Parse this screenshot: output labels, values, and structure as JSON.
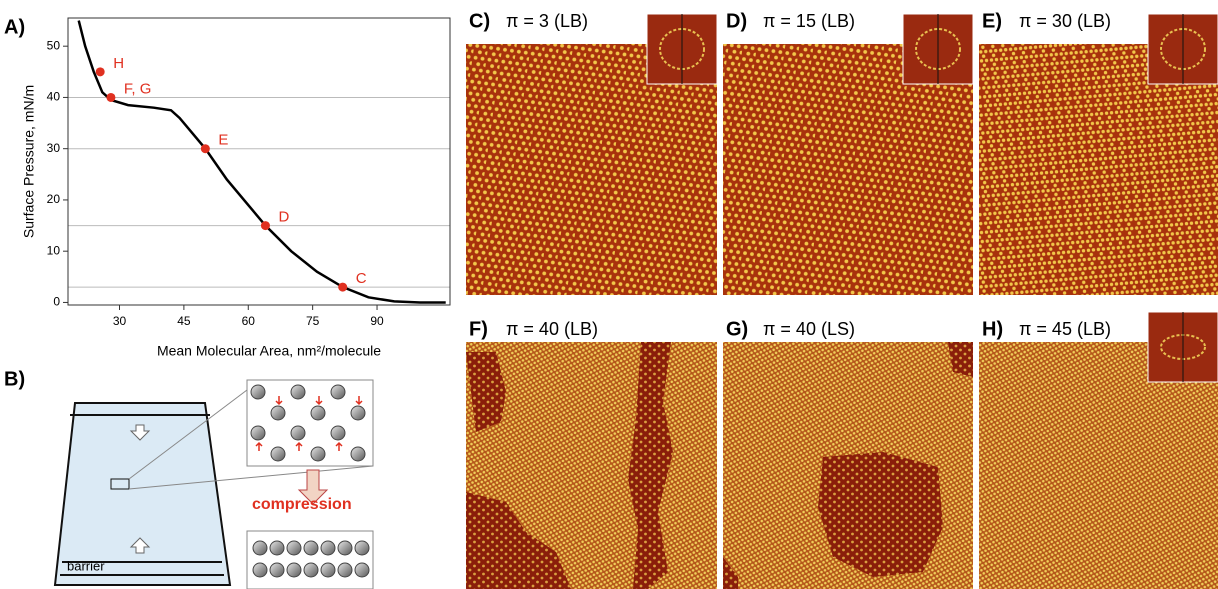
{
  "panel_labels": {
    "a": "A)",
    "b": "B)"
  },
  "chart_data": {
    "type": "line",
    "y_label": "Surface Pressure,  mN/m",
    "x_label": "Mean Molecular Area,  nm²/molecule",
    "x": [
      20.5,
      22,
      24,
      26,
      28,
      32,
      38,
      42,
      44,
      47,
      50,
      55,
      60,
      64,
      70,
      76,
      82,
      88,
      94,
      100,
      106
    ],
    "values": [
      55,
      50,
      45,
      41,
      39.5,
      38.5,
      38,
      37.5,
      36,
      33,
      30,
      24,
      19,
      15,
      10,
      6,
      3,
      1,
      0.2,
      0,
      0
    ],
    "color": "#000000",
    "points": {
      "x": [
        25.5,
        28,
        50,
        64,
        82
      ],
      "values": [
        45,
        40,
        30,
        15,
        3
      ],
      "labels": [
        "H",
        "F, G",
        "E",
        "D",
        "C"
      ],
      "color": "#e03020"
    },
    "reference_lines": [
      3,
      15,
      30,
      40
    ],
    "xlim": [
      18,
      107
    ],
    "ylim": [
      -0.5,
      55.5
    ],
    "xticks": [
      30,
      45,
      60,
      75,
      90
    ],
    "yticks": [
      0,
      10,
      20,
      30,
      40,
      50
    ]
  },
  "diagram": {
    "barrier": "barrier",
    "compression": "compression"
  },
  "images": [
    {
      "label": "C)",
      "title": "π = 3 (LB)"
    },
    {
      "label": "D)",
      "title": "π = 15 (LB)"
    },
    {
      "label": "E)",
      "title": "π = 30 (LB)"
    },
    {
      "label": "F)",
      "title": "π = 40 (LB)"
    },
    {
      "label": "G)",
      "title": "π = 40 (LS)"
    },
    {
      "label": "H)",
      "title": "π = 45 (LB)"
    }
  ]
}
